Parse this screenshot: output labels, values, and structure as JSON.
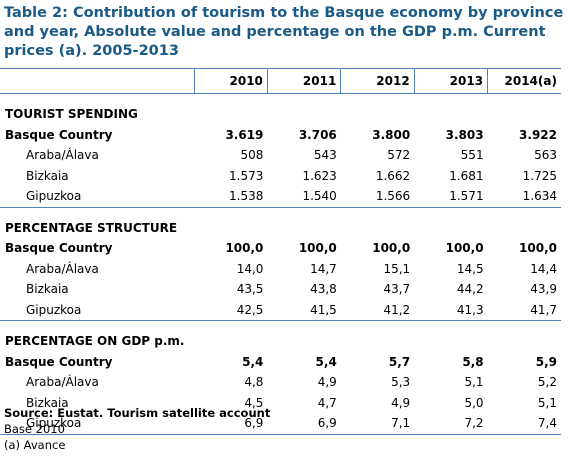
{
  "title": "Table 2: Contribution of tourism to the Basque economy by province and year, Absolute value and percentage on the GDP p.m. Current prices (a). 2005-2013",
  "columns": [
    "2010",
    "2011",
    "2012",
    "2013",
    "2014(a)"
  ],
  "sections": [
    {
      "heading": "TOURIST SPENDING",
      "rows": [
        {
          "label": "Basque Country",
          "values": [
            "3.619",
            "3.706",
            "3.800",
            "3.803",
            "3.922"
          ]
        },
        {
          "label": "Araba/Álava",
          "values": [
            "508",
            "543",
            "572",
            "551",
            "563"
          ]
        },
        {
          "label": "Bizkaia",
          "values": [
            "1.573",
            "1.623",
            "1.662",
            "1.681",
            "1.725"
          ]
        },
        {
          "label": "Gipuzkoa",
          "values": [
            "1.538",
            "1.540",
            "1.566",
            "1.571",
            "1.634"
          ]
        }
      ]
    },
    {
      "heading": "PERCENTAGE STRUCTURE",
      "rows": [
        {
          "label": "Basque Country",
          "values": [
            "100,0",
            "100,0",
            "100,0",
            "100,0",
            "100,0"
          ]
        },
        {
          "label": "Araba/Álava",
          "values": [
            "14,0",
            "14,7",
            "15,1",
            "14,5",
            "14,4"
          ]
        },
        {
          "label": "Bizkaia",
          "values": [
            "43,5",
            "43,8",
            "43,7",
            "44,2",
            "43,9"
          ]
        },
        {
          "label": "Gipuzkoa",
          "values": [
            "42,5",
            "41,5",
            "41,2",
            "41,3",
            "41,7"
          ]
        }
      ]
    },
    {
      "heading": "PERCENTAGE ON GDP p.m.",
      "rows": [
        {
          "label": "Basque Country",
          "values": [
            "5,4",
            "5,4",
            "5,7",
            "5,8",
            "5,9"
          ]
        },
        {
          "label": "Araba/Álava",
          "values": [
            "4,8",
            "4,9",
            "5,3",
            "5,1",
            "5,2"
          ]
        },
        {
          "label": "Bizkaia",
          "values": [
            "4,5",
            "4,7",
            "4,9",
            "5,0",
            "5,1"
          ]
        },
        {
          "label": "Gipuzkoa",
          "values": [
            "6,9",
            "6,9",
            "7,1",
            "7,2",
            "7,4"
          ]
        }
      ]
    }
  ],
  "notes": {
    "source": "Source: Eustat. Tourism satellite account",
    "base": "Base 2010",
    "footnote": "(a) Avance"
  }
}
